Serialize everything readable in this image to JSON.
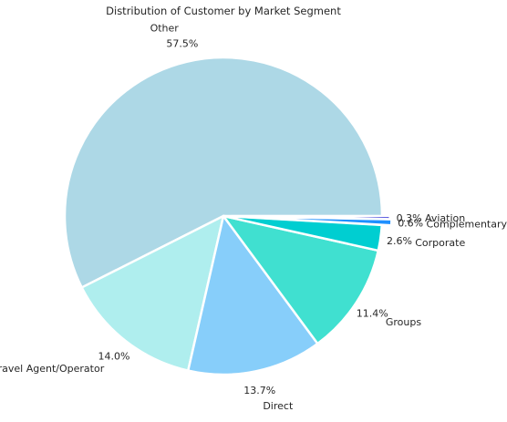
{
  "chart_data": {
    "type": "pie",
    "title": "Distribution of Customer by Market Segment",
    "slices": [
      {
        "label": "Other",
        "value": 57.5,
        "pct_label": "57.5%",
        "color": "#ADD8E6"
      },
      {
        "label": "Travel Agent/Operator",
        "value": 14.0,
        "pct_label": "14.0%",
        "color": "#AFEEEE"
      },
      {
        "label": "Direct",
        "value": 13.7,
        "pct_label": "13.7%",
        "color": "#87CEFA"
      },
      {
        "label": "Groups",
        "value": 11.4,
        "pct_label": "11.4%",
        "color": "#40E0D0"
      },
      {
        "label": "Corporate",
        "value": 2.6,
        "pct_label": "2.6%",
        "color": "#00CED1"
      },
      {
        "label": "Complementary",
        "value": 0.6,
        "pct_label": "0.6%",
        "color": "#1E90FF"
      },
      {
        "label": "Aviation",
        "value": 0.3,
        "pct_label": "0.3%",
        "color": "#0000CD"
      }
    ],
    "legend": "none",
    "grid": false
  }
}
